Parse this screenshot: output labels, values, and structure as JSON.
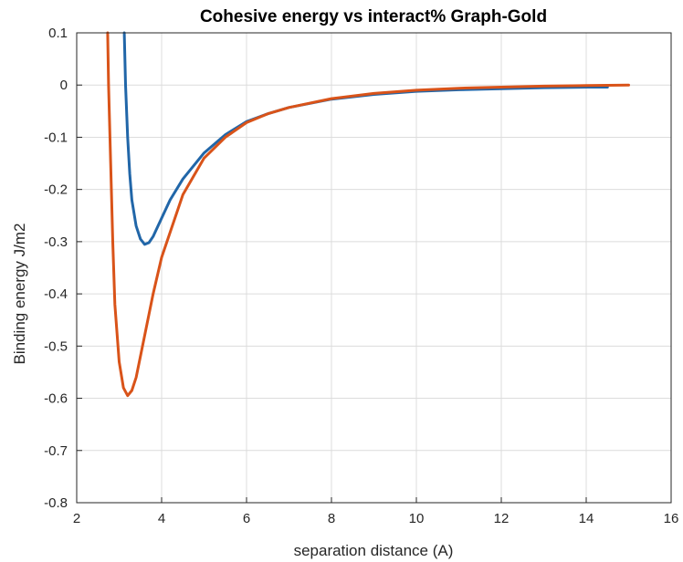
{
  "chart_data": {
    "type": "line",
    "title": "Cohesive energy vs interact% Graph-Gold",
    "xlabel": "separation distance (A)",
    "ylabel": "Binding energy  J/m2",
    "xlim": [
      2,
      16
    ],
    "ylim": [
      -0.8,
      0.1
    ],
    "xticks": [
      2,
      4,
      6,
      8,
      10,
      12,
      14,
      16
    ],
    "yticks": [
      0.1,
      0,
      -0.1,
      -0.2,
      -0.3,
      -0.4,
      -0.5,
      -0.6,
      -0.7,
      -0.8
    ],
    "grid": true,
    "series": [
      {
        "color": "#2166a8",
        "x": [
          3.12,
          3.15,
          3.2,
          3.25,
          3.3,
          3.4,
          3.5,
          3.6,
          3.7,
          3.8,
          4.0,
          4.2,
          4.5,
          5.0,
          5.5,
          6.0,
          6.5,
          7.0,
          8.0,
          9.0,
          10.0,
          11.0,
          12.0,
          13.0,
          14.0,
          14.5
        ],
        "y": [
          0.1,
          0.0,
          -0.1,
          -0.17,
          -0.22,
          -0.27,
          -0.295,
          -0.305,
          -0.302,
          -0.29,
          -0.255,
          -0.22,
          -0.18,
          -0.13,
          -0.095,
          -0.07,
          -0.055,
          -0.043,
          -0.027,
          -0.018,
          -0.012,
          -0.009,
          -0.007,
          -0.005,
          -0.004,
          -0.004
        ]
      },
      {
        "color": "#d95319",
        "x": [
          2.73,
          2.75,
          2.8,
          2.85,
          2.9,
          3.0,
          3.1,
          3.2,
          3.3,
          3.4,
          3.6,
          3.8,
          4.0,
          4.5,
          5.0,
          5.5,
          6.0,
          6.5,
          7.0,
          8.0,
          9.0,
          10.0,
          11.0,
          12.0,
          13.0,
          14.0,
          15.0
        ],
        "y": [
          0.1,
          0.0,
          -0.15,
          -0.3,
          -0.42,
          -0.53,
          -0.58,
          -0.595,
          -0.585,
          -0.56,
          -0.48,
          -0.4,
          -0.33,
          -0.21,
          -0.14,
          -0.1,
          -0.072,
          -0.055,
          -0.043,
          -0.026,
          -0.016,
          -0.01,
          -0.006,
          -0.004,
          -0.002,
          -0.001,
          0.0
        ]
      }
    ]
  }
}
